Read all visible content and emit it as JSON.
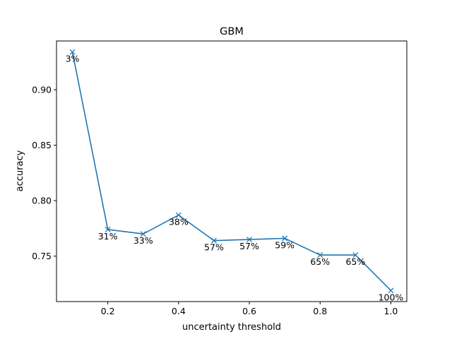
{
  "chart_data": {
    "type": "line",
    "title": "GBM",
    "xlabel": "uncertainty threshold",
    "ylabel": "accuracy",
    "xlim": [
      0.055,
      1.045
    ],
    "ylim": [
      0.709,
      0.944
    ],
    "xticks": [
      0.2,
      0.4,
      0.6,
      0.8,
      1.0
    ],
    "xtick_labels": [
      "0.2",
      "0.4",
      "0.6",
      "0.8",
      "1.0"
    ],
    "yticks": [
      0.75,
      0.8,
      0.85,
      0.9
    ],
    "ytick_labels": [
      "0.75",
      "0.80",
      "0.85",
      "0.90"
    ],
    "grid": false,
    "marker": "x",
    "color": "#1f77b4",
    "series": [
      {
        "x": [
          0.1,
          0.2,
          0.3,
          0.4,
          0.5,
          0.6,
          0.7,
          0.8,
          0.9,
          1.0
        ],
        "values": [
          0.934,
          0.774,
          0.77,
          0.787,
          0.764,
          0.765,
          0.766,
          0.751,
          0.751,
          0.719
        ],
        "annotations": [
          "3%",
          "31%",
          "33%",
          "38%",
          "57%",
          "57%",
          "59%",
          "65%",
          "65%",
          "100%"
        ]
      }
    ]
  }
}
